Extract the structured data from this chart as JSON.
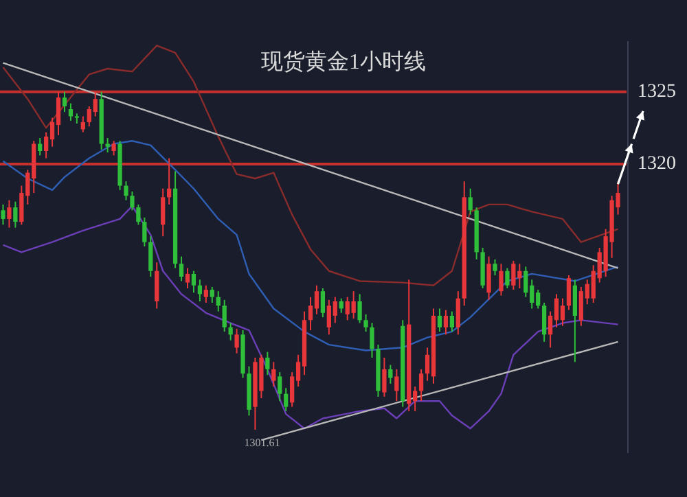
{
  "chart_data": {
    "type": "candlestick",
    "title": "现货黄金1小时线",
    "categories": [
      null,
      null,
      null,
      null,
      null,
      null,
      null,
      null,
      null,
      null,
      null,
      null,
      null,
      null,
      null,
      null,
      null,
      null,
      null,
      null,
      null,
      null,
      null,
      null,
      null,
      null,
      null,
      null,
      null,
      null,
      null,
      null,
      null,
      null,
      null,
      null,
      null,
      null,
      null,
      null,
      null,
      null,
      null,
      null,
      null,
      null,
      null,
      null,
      null,
      null,
      null,
      null,
      null,
      null,
      null,
      null,
      null,
      null,
      null,
      null,
      null,
      null,
      null,
      null,
      null,
      null,
      null,
      null,
      null,
      null,
      null,
      null,
      null,
      null,
      null,
      null,
      null,
      null,
      null,
      null,
      null,
      null,
      null,
      null,
      null,
      null,
      null,
      null,
      null,
      null,
      null,
      null,
      null,
      null,
      null,
      null,
      null,
      null,
      null,
      null,
      null
    ],
    "ohlc": [
      [
        1316.8,
        1317.2,
        1315.8,
        1316.2
      ],
      [
        1316.2,
        1317.5,
        1315.6,
        1317
      ],
      [
        1317,
        1317.4,
        1315.6,
        1316
      ],
      [
        1316,
        1318.5,
        1315.8,
        1318
      ],
      [
        1317.8,
        1319.6,
        1317.2,
        1319.4
      ],
      [
        1319,
        1321.6,
        1318,
        1321.4
      ],
      [
        1321.4,
        1321.8,
        1320.6,
        1320.9
      ],
      [
        1320.9,
        1322.2,
        1320.4,
        1321.9
      ],
      [
        1321.7,
        1323.2,
        1321.2,
        1322.9
      ],
      [
        1322.7,
        1325,
        1322,
        1324.6
      ],
      [
        1324.6,
        1325,
        1323.6,
        1324
      ],
      [
        1323.8,
        1324.2,
        1323,
        1323.3
      ],
      [
        1323.3,
        1323.5,
        1322.8,
        1323.2
      ],
      [
        1322.4,
        1323.3,
        1322.2,
        1322.9
      ],
      [
        1322.9,
        1324,
        1322.6,
        1323.8
      ],
      [
        1323.6,
        1325,
        1323.3,
        1324.5
      ],
      [
        1324.5,
        1325,
        1321,
        1321.4
      ],
      [
        1321.4,
        1321.8,
        1320.8,
        1321.2
      ],
      [
        1320.9,
        1321.6,
        1320.6,
        1321.4
      ],
      [
        1321.4,
        1321.6,
        1318.2,
        1318.5
      ],
      [
        1318.5,
        1318.8,
        1317.5,
        1317.8
      ],
      [
        1317.8,
        1318.1,
        1316.8,
        1317
      ],
      [
        1317,
        1317.2,
        1315.8,
        1316
      ],
      [
        1316,
        1316.3,
        1314.3,
        1314.6
      ],
      [
        1314.6,
        1315,
        1312.2,
        1312.6
      ],
      [
        1310.5,
        1313.2,
        1310,
        1312.6
      ],
      [
        1315.8,
        1318.3,
        1315,
        1317.7
      ],
      [
        1317.7,
        1320.4,
        1317.2,
        1318.3
      ],
      [
        1318.3,
        1319.5,
        1312.8,
        1313.1
      ],
      [
        1313.1,
        1313.6,
        1311.9,
        1312.2
      ],
      [
        1311.8,
        1312.8,
        1311.4,
        1312.4
      ],
      [
        1312.4,
        1312.6,
        1311.1,
        1311.6
      ],
      [
        1311.6,
        1312,
        1310.5,
        1311
      ],
      [
        1310.8,
        1311.6,
        1310.4,
        1311.3
      ],
      [
        1311.3,
        1311.5,
        1310.4,
        1310.8
      ],
      [
        1310.8,
        1311.2,
        1309.8,
        1310.2
      ],
      [
        1310.2,
        1310.6,
        1308.4,
        1308.7
      ],
      [
        1308.7,
        1309,
        1307.8,
        1308.2
      ],
      [
        1307.3,
        1308.6,
        1306.9,
        1308.2
      ],
      [
        1308.2,
        1308.5,
        1305.2,
        1305.5
      ],
      [
        1305.5,
        1306,
        1302.6,
        1303
      ],
      [
        1303.2,
        1306.6,
        1301.61,
        1306.3
      ],
      [
        1304.3,
        1306.8,
        1303.8,
        1306.6
      ],
      [
        1306.6,
        1307,
        1305.4,
        1305.8
      ],
      [
        1305,
        1306.3,
        1304.6,
        1305.8
      ],
      [
        1305.3,
        1305.6,
        1303.6,
        1304.1
      ],
      [
        1304.1,
        1304.5,
        1302.9,
        1303.2
      ],
      [
        1303.5,
        1305.6,
        1303.2,
        1305.3
      ],
      [
        1305,
        1306.8,
        1304.6,
        1306.3
      ],
      [
        1306,
        1309.8,
        1305.4,
        1309.2
      ],
      [
        1309.2,
        1310.8,
        1308.5,
        1310.2
      ],
      [
        1310,
        1311.6,
        1309.6,
        1311.2
      ],
      [
        1311.2,
        1311.4,
        1309.4,
        1309.7
      ],
      [
        1308.7,
        1310.6,
        1308.2,
        1310.2
      ],
      [
        1309.5,
        1310.8,
        1309,
        1310.5
      ],
      [
        1310.5,
        1310.7,
        1309.7,
        1310
      ],
      [
        1309.6,
        1310.8,
        1309.2,
        1310.5
      ],
      [
        1309.7,
        1311.2,
        1309.3,
        1310.5
      ],
      [
        1310.5,
        1311,
        1309,
        1309.2
      ],
      [
        1309.2,
        1309.6,
        1308.4,
        1308.7
      ],
      [
        1308.7,
        1309,
        1306.6,
        1307.2
      ],
      [
        1307.2,
        1307.5,
        1303.9,
        1304.3
      ],
      [
        1304.2,
        1306.6,
        1303.9,
        1305.8
      ],
      [
        1305.8,
        1306.1,
        1304.8,
        1305.2
      ],
      [
        1304.3,
        1305.8,
        1303.6,
        1305.3
      ],
      [
        1308.8,
        1309.2,
        1303.2,
        1303.6
      ],
      [
        1303.4,
        1312,
        1302.9,
        1308.9
      ],
      [
        1303.6,
        1304.6,
        1302.9,
        1304.3
      ],
      [
        1304.3,
        1305.8,
        1303.6,
        1305.5
      ],
      [
        1305.5,
        1307.3,
        1305,
        1306.8
      ],
      [
        1305.3,
        1310,
        1304.8,
        1309.5
      ],
      [
        1309.5,
        1310,
        1308.4,
        1308.7
      ],
      [
        1308.7,
        1309.9,
        1308.2,
        1309.5
      ],
      [
        1309.5,
        1309.8,
        1308.4,
        1308.7
      ],
      [
        1308.7,
        1311.2,
        1308.2,
        1310.7
      ],
      [
        1310.7,
        1318.8,
        1310.2,
        1317.7
      ],
      [
        1317.7,
        1318.3,
        1316.5,
        1316.8
      ],
      [
        1316.8,
        1317,
        1313.4,
        1313.9
      ],
      [
        1313.9,
        1314.2,
        1311.4,
        1311.6
      ],
      [
        1311.1,
        1313.6,
        1310.6,
        1313.1
      ],
      [
        1313.1,
        1313.4,
        1312.3,
        1312.6
      ],
      [
        1311.2,
        1313.1,
        1310.9,
        1312.6
      ],
      [
        1312.6,
        1312.8,
        1311.4,
        1311.6
      ],
      [
        1311.6,
        1313.3,
        1311.3,
        1313.1
      ],
      [
        1312.1,
        1313.1,
        1311.4,
        1312.6
      ],
      [
        1312.6,
        1312.9,
        1310.8,
        1311.1
      ],
      [
        1311.6,
        1312,
        1310,
        1310.4
      ],
      [
        1311.1,
        1311.3,
        1310,
        1310.2
      ],
      [
        1310.2,
        1310.4,
        1307.7,
        1308.2
      ],
      [
        1308.2,
        1309.8,
        1307.3,
        1309.5
      ],
      [
        1309.2,
        1311,
        1308.7,
        1310.7
      ],
      [
        1309.2,
        1310.7,
        1308.8,
        1310.2
      ],
      [
        1310.2,
        1312.3,
        1309.9,
        1312.1
      ],
      [
        1311.6,
        1312,
        1306.3,
        1309.5
      ],
      [
        1309.2,
        1311.5,
        1308.8,
        1311.2
      ],
      [
        1310.7,
        1312,
        1310.3,
        1311.7
      ],
      [
        1310.7,
        1313,
        1310.4,
        1312.6
      ],
      [
        1312.1,
        1314.2,
        1311.8,
        1313.9
      ],
      [
        1312.6,
        1315.5,
        1312.2,
        1315
      ],
      [
        1314.6,
        1317.8,
        1313.5,
        1317.5
      ],
      [
        1317,
        1318.8,
        1316.5,
        1318
      ]
    ],
    "series": [
      {
        "type": "line",
        "color": "#8a2c2c",
        "values": [
          1326.7,
          null,
          null,
          null,
          1324.5,
          null,
          null,
          1322.5,
          null,
          null,
          1324.1,
          null,
          null,
          null,
          1326.2,
          null,
          null,
          1326.6,
          null,
          null,
          null,
          1326.4,
          null,
          null,
          null,
          1328.2,
          null,
          null,
          1327.7,
          null,
          null,
          1325.7,
          null,
          null,
          null,
          1321.9,
          null,
          null,
          1319.3,
          null,
          null,
          1319,
          null,
          null,
          1319.4,
          null,
          null,
          1316.5,
          null,
          null,
          1314.1,
          null,
          null,
          1312.6,
          null,
          null,
          null,
          null,
          1311.9,
          null,
          null,
          null,
          null,
          null,
          null,
          1311.8,
          null,
          null,
          null,
          null,
          1311.6,
          null,
          null,
          1312.6,
          null,
          null,
          1316.7,
          null,
          null,
          1317.2,
          null,
          null,
          1317.2,
          null,
          null,
          null,
          1316.7,
          null,
          null,
          null,
          null,
          1316.2,
          null,
          null,
          1314.6,
          null,
          null,
          null,
          null,
          null,
          1315.5
        ]
      },
      {
        "type": "line",
        "color": "#2f5fb5",
        "values": [
          1320.2,
          null,
          null,
          null,
          1319,
          null,
          null,
          null,
          1318.2,
          null,
          1319.1,
          null,
          null,
          null,
          1320.4,
          null,
          null,
          null,
          1321.4,
          null,
          null,
          1321.6,
          null,
          null,
          1321.3,
          null,
          null,
          null,
          1319.6,
          null,
          null,
          1318.3,
          null,
          null,
          null,
          1316.2,
          null,
          null,
          1315.1,
          null,
          1312.4,
          null,
          null,
          null,
          1310,
          null,
          null,
          null,
          null,
          1308.4,
          null,
          null,
          null,
          1307.5,
          null,
          null,
          null,
          null,
          null,
          1307.1,
          null,
          null,
          null,
          null,
          null,
          1307.3,
          null,
          null,
          null,
          1308,
          null,
          null,
          null,
          1308.4,
          null,
          null,
          1309.4,
          null,
          null,
          null,
          null,
          null,
          1311.9,
          null,
          null,
          null,
          1312.4,
          null,
          null,
          null,
          null,
          null,
          null,
          1311.9,
          null,
          null,
          null,
          null,
          null,
          null,
          1312.9
        ]
      },
      {
        "type": "line",
        "color": "#6b3fb8",
        "values": [
          1314.4,
          null,
          null,
          1313.9,
          null,
          null,
          null,
          null,
          1314.6,
          null,
          null,
          null,
          null,
          1315.4,
          null,
          null,
          null,
          null,
          null,
          1316.2,
          null,
          1317.1,
          null,
          null,
          1315.1,
          null,
          1312.6,
          null,
          null,
          1311,
          null,
          null,
          null,
          1309.7,
          null,
          null,
          null,
          1309,
          null,
          null,
          1308.5,
          null,
          null,
          1305.8,
          null,
          null,
          1302.7,
          null,
          null,
          1301.7,
          null,
          null,
          1302.4,
          null,
          null,
          null,
          null,
          null,
          1302.9,
          null,
          null,
          null,
          1303.1,
          null,
          1302.4,
          null,
          null,
          1303.6,
          null,
          null,
          null,
          1303.6,
          null,
          1302.6,
          null,
          null,
          1301.7,
          null,
          null,
          1302.9,
          null,
          1304.1,
          null,
          1306.8,
          null,
          null,
          null,
          1308.4,
          null,
          null,
          null,
          1309,
          null,
          null,
          1309.2,
          null,
          null,
          null,
          null,
          null,
          1308.9
        ]
      },
      {
        "type": "line",
        "color": "#b8b8b8",
        "values": [
          1327,
          null,
          null,
          null,
          null,
          null,
          null,
          null,
          null,
          null,
          null,
          null,
          null,
          null,
          null,
          null,
          null,
          null,
          null,
          null,
          null,
          null,
          null,
          null,
          null,
          null,
          null,
          null,
          null,
          null,
          null,
          null,
          null,
          null,
          null,
          null,
          null,
          null,
          null,
          null,
          null,
          null,
          null,
          null,
          null,
          null,
          null,
          null,
          null,
          null,
          null,
          null,
          null,
          null,
          null,
          null,
          null,
          null,
          null,
          null,
          null,
          null,
          null,
          null,
          null,
          null,
          null,
          null,
          null,
          null,
          null,
          null,
          null,
          null,
          null,
          null,
          null,
          null,
          null,
          null,
          null,
          null,
          null,
          null,
          null,
          null,
          null,
          null,
          null,
          null,
          null,
          null,
          null,
          null,
          null,
          null,
          null,
          null,
          null,
          null,
          1312.8
        ]
      },
      {
        "type": "line",
        "color": "#b8b8b8",
        "values": [
          null,
          null,
          null,
          null,
          null,
          null,
          null,
          null,
          null,
          null,
          null,
          null,
          null,
          null,
          null,
          null,
          null,
          null,
          null,
          null,
          null,
          null,
          null,
          null,
          null,
          null,
          null,
          null,
          null,
          null,
          null,
          null,
          null,
          null,
          null,
          null,
          null,
          null,
          null,
          null,
          null,
          null,
          1300.9,
          null,
          null,
          null,
          null,
          null,
          null,
          null,
          null,
          null,
          null,
          null,
          null,
          null,
          null,
          null,
          null,
          null,
          null,
          null,
          null,
          null,
          null,
          null,
          null,
          null,
          null,
          null,
          null,
          null,
          null,
          null,
          null,
          null,
          null,
          null,
          null,
          null,
          null,
          null,
          null,
          null,
          null,
          null,
          null,
          null,
          null,
          null,
          null,
          null,
          null,
          null,
          null,
          null,
          null,
          null,
          null,
          null,
          1307.7
        ]
      }
    ],
    "ylim": [
      1300,
      1328.5
    ],
    "yticks": [
      1320,
      1325
    ],
    "ref_lines": [
      {
        "axis": "y",
        "value": 1325,
        "color": "#c8302f"
      },
      {
        "axis": "y",
        "value": 1320,
        "color": "#c8302f"
      }
    ],
    "annotations": [
      "1301.61"
    ]
  }
}
